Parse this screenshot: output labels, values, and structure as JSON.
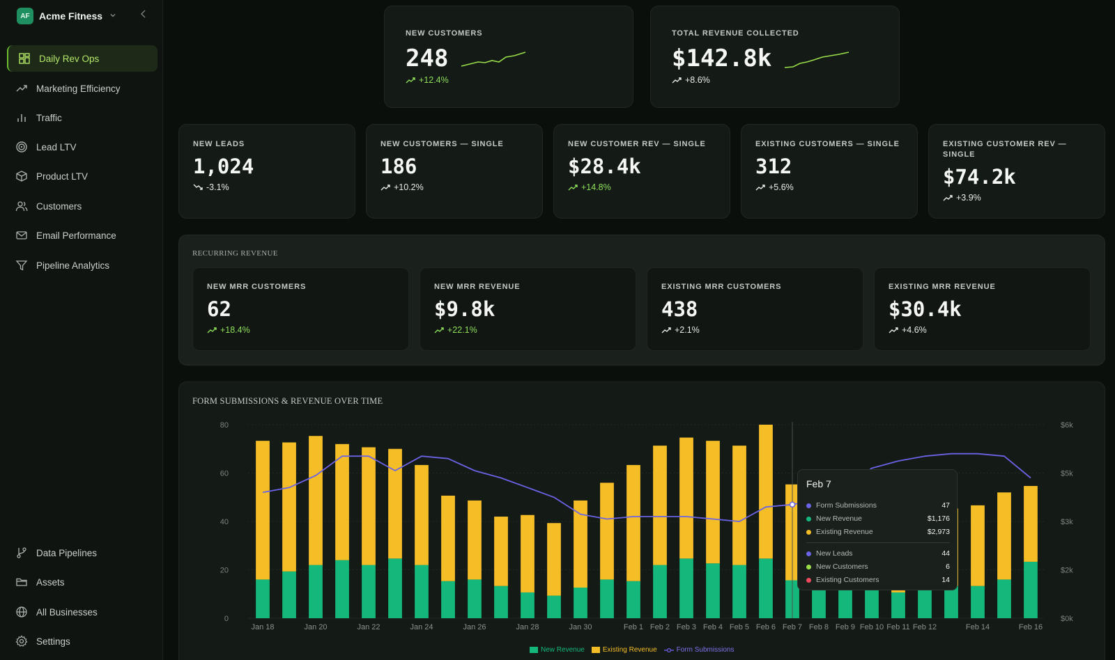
{
  "app": {
    "workspace_initials": "AF",
    "workspace_name": "Acme Fitness"
  },
  "sidebar": {
    "items": [
      {
        "label": "Daily Rev Ops",
        "icon": "dashboard-grid-icon"
      },
      {
        "label": "Marketing Efficiency",
        "icon": "trending-up-icon"
      },
      {
        "label": "Traffic",
        "icon": "bar-chart-icon"
      },
      {
        "label": "Lead LTV",
        "icon": "target-icon"
      },
      {
        "label": "Product LTV",
        "icon": "box-icon"
      },
      {
        "label": "Customers",
        "icon": "users-icon"
      },
      {
        "label": "Email Performance",
        "icon": "mail-icon"
      },
      {
        "label": "Pipeline Analytics",
        "icon": "filter-icon"
      }
    ],
    "bottom_items": [
      {
        "label": "Data Pipelines",
        "icon": "git-branch-icon"
      },
      {
        "label": "Assets",
        "icon": "folder-icon"
      },
      {
        "label": "All Businesses",
        "icon": "globe-icon"
      },
      {
        "label": "Settings",
        "icon": "gear-icon"
      }
    ]
  },
  "top_kpis": [
    {
      "label": "NEW CUSTOMERS",
      "value": "248",
      "delta": "+12.4%",
      "trend": "up"
    },
    {
      "label": "TOTAL REVENUE COLLECTED",
      "value": "$142.8k",
      "delta": "+8.6%",
      "trend": "up"
    }
  ],
  "single_kpis": [
    {
      "label": "NEW LEADS",
      "value": "1,024",
      "delta": "-3.1%",
      "trend": "down"
    },
    {
      "label": "NEW CUSTOMERS — SINGLE",
      "value": "186",
      "delta": "+10.2%",
      "trend": "up"
    },
    {
      "label": "NEW CUSTOMER REV — SINGLE",
      "value": "$28.4k",
      "delta": "+14.8%",
      "trend": "up",
      "accent": "green"
    },
    {
      "label": "EXISTING CUSTOMERS — SINGLE",
      "value": "312",
      "delta": "+5.6%",
      "trend": "up"
    },
    {
      "label_line1": "EXISTING CUSTOMER REV —",
      "label_line2": "SINGLE",
      "value": "$74.2k",
      "delta": "+3.9%",
      "trend": "up"
    }
  ],
  "recurring": {
    "title": "RECURRING REVENUE",
    "kpis": [
      {
        "label": "NEW MRR CUSTOMERS",
        "value": "62",
        "delta": "+18.4%",
        "accent": "green"
      },
      {
        "label": "NEW MRR REVENUE",
        "value": "$9.8k",
        "delta": "+22.1%",
        "accent": "green"
      },
      {
        "label": "EXISTING MRR CUSTOMERS",
        "value": "438",
        "delta": "+2.1%"
      },
      {
        "label": "EXISTING MRR REVENUE",
        "value": "$30.4k",
        "delta": "+4.6%"
      }
    ]
  },
  "chart_title": "FORM SUBMISSIONS & REVENUE OVER TIME",
  "colors": {
    "new_revenue": "#14b87a",
    "existing_revenue": "#f5be27",
    "form_submissions": "#6b63e6",
    "new_customers": "#9be04a",
    "existing_customers": "#f04a5e",
    "accent_green": "#8ee05a"
  },
  "chart_data": {
    "type": "bar",
    "stacked": true,
    "categories": [
      "Jan 18",
      "Jan 19",
      "Jan 20",
      "Jan 21",
      "Jan 22",
      "Jan 23",
      "Jan 24",
      "Jan 25",
      "Jan 26",
      "Jan 27",
      "Jan 28",
      "Jan 29",
      "Jan 30",
      "Jan 31",
      "Feb 1",
      "Feb 2",
      "Feb 3",
      "Feb 4",
      "Feb 5",
      "Feb 6",
      "Feb 7",
      "Feb 8",
      "Feb 9",
      "Feb 10",
      "Feb 11",
      "Feb 12",
      "Feb 13",
      "Feb 14",
      "Feb 15",
      "Feb 16"
    ],
    "tick_labels": [
      "Jan 18",
      "",
      "Jan 20",
      "",
      "Jan 22",
      "",
      "Jan 24",
      "",
      "Jan 26",
      "",
      "Jan 28",
      "",
      "Jan 30",
      "",
      "Feb 1",
      "Feb 2",
      "Feb 3",
      "Feb 4",
      "Feb 5",
      "Feb 6",
      "Feb 7",
      "Feb 8",
      "Feb 9",
      "Feb 10",
      "Feb 11",
      "Feb 12",
      "",
      "Feb 14",
      "",
      "Feb 16"
    ],
    "series": [
      {
        "name": "New Revenue",
        "axis": "right",
        "values": [
          1200,
          1450,
          1650,
          1800,
          1650,
          1850,
          1650,
          1150,
          1200,
          1000,
          800,
          700,
          950,
          1200,
          1150,
          1650,
          1850,
          1700,
          1650,
          1850,
          1176,
          1200,
          1100,
          1000,
          800,
          900,
          1000,
          1000,
          1200,
          1750
        ]
      },
      {
        "name": "Existing Revenue",
        "axis": "right",
        "values": [
          4300,
          4000,
          4000,
          3600,
          3650,
          3400,
          3100,
          2650,
          2450,
          2150,
          2400,
          2250,
          2700,
          3000,
          3600,
          3700,
          3750,
          3800,
          3700,
          4150,
          2973,
          2500,
          2300,
          2500,
          2700,
          2700,
          2400,
          2500,
          2700,
          2350
        ]
      },
      {
        "name": "Form Submissions",
        "axis": "left",
        "type": "line",
        "values": [
          52,
          54,
          59,
          67,
          67,
          61,
          67,
          66,
          61,
          58,
          54,
          50,
          43,
          41,
          42,
          42,
          42,
          41,
          40,
          46,
          47,
          49,
          54,
          62,
          65,
          67,
          68,
          68,
          67,
          58
        ]
      }
    ],
    "ylim_left": [
      0,
      80
    ],
    "yticks_left": [
      "0",
      "20",
      "40",
      "60",
      "80"
    ],
    "ylim_right": [
      0,
      6000
    ],
    "yticks_right": [
      "$0k",
      "$2k",
      "$3k",
      "$5k",
      "$6k"
    ],
    "legend": [
      "New Revenue",
      "Existing Revenue",
      "Form Submissions"
    ],
    "legend_position": "bottom"
  },
  "tooltip": {
    "title": "Feb 7",
    "rows": [
      {
        "label": "Form Submissions",
        "value": "47",
        "color": "#6b63e6"
      },
      {
        "label": "New Revenue",
        "value": "$1,176",
        "color": "#14b87a"
      },
      {
        "label": "Existing Revenue",
        "value": "$2,973",
        "color": "#f5be27"
      },
      {
        "label": "New Leads",
        "value": "44",
        "color": "#6b63e6"
      },
      {
        "label": "New Customers",
        "value": "6",
        "color": "#9be04a"
      },
      {
        "label": "Existing Customers",
        "value": "14",
        "color": "#f04a5e"
      }
    ]
  }
}
